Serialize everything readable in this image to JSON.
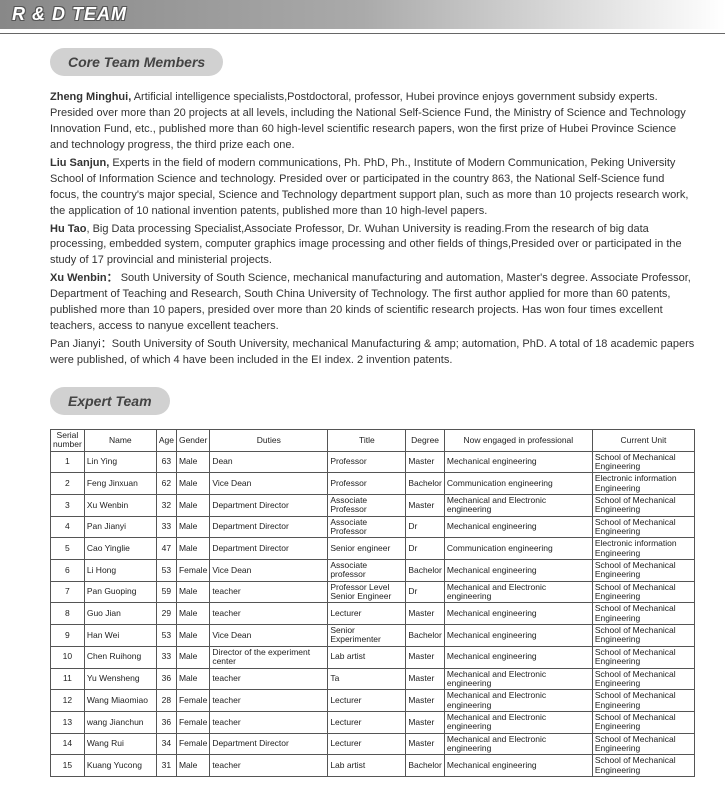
{
  "banner": {
    "title": "R & D TEAM"
  },
  "sections": {
    "core": "Core Team Members",
    "expert": "Expert Team"
  },
  "bios": {
    "p1_name": "Zheng Minghui,",
    "p1_rest": "  Artificial intelligence specialists,Postdoctoral, professor, Hubei province enjoys government subsidy experts. Presided over more than 20 projects at all levels, including the National Self-Science Fund, the Ministry of Science and Technology Innovation Fund, etc., published more than 60 high-level scientific research papers, won the first prize of Hubei Province Science and technology progress, the third prize each one.",
    "p2_name": "Liu Sanjun,",
    "p2_rest": " Experts in the field of modern communications, Ph. PhD, Ph., Institute of Modern Communication, Peking University School of Information Science and technology. Presided over or participated in the country 863, the National Self-Science fund focus, the country's major special, Science and Technology department support plan, such as more than 10 projects research work, the application of 10 national invention patents, published more than 10 high-level papers.",
    "p3_name": "Hu Tao",
    "p3_rest": ", Big Data processing Specialist,Associate Professor, Dr. Wuhan University is reading.From the research of big data processing, embedded system, computer graphics image processing and other fields of things,Presided over or participated in the study of 17 provincial and ministerial projects.",
    "p4_name": "Xu Wenbin：",
    "p4_rest": "   South University of South Science, mechanical manufacturing and automation, Master's degree. Associate Professor, Department of Teaching and Research, South China University of Technology. The first author applied for more than 60 patents, published more than 10 papers, presided over more than 20 kinds of scientific research projects. Has won four times excellent teachers, access to nanyue excellent teachers.",
    "p5": "Pan Jianyi：South University of South University, mechanical Manufacturing & amp; automation, PhD. A total of 18 academic papers were published, of which 4 have been included in the EI index. 2 invention patents."
  },
  "table": {
    "headers": {
      "sn": "Serial number",
      "name": "Name",
      "age": "Age",
      "gender": "Gender",
      "duties": "Duties",
      "title": "Title",
      "degree": "Degree",
      "prof": "Now engaged in professional",
      "unit": "Current Unit"
    },
    "rows": [
      {
        "sn": "1",
        "name": "Lin Ying",
        "age": "63",
        "gender": "Male",
        "duties": "Dean",
        "title": "Professor",
        "degree": "Master",
        "prof": "Mechanical engineering",
        "unit": "School of Mechanical Engineering"
      },
      {
        "sn": "2",
        "name": "Feng Jinxuan",
        "age": "62",
        "gender": "Male",
        "duties": "Vice Dean",
        "title": "Professor",
        "degree": "Bachelor",
        "prof": "Communication engineering",
        "unit": "Electronic information Engineering"
      },
      {
        "sn": "3",
        "name": "Xu Wenbin",
        "age": "32",
        "gender": "Male",
        "duties": "Department Director",
        "title": "Associate Professor",
        "degree": "Master",
        "prof": "Mechanical and Electronic engineering",
        "unit": "School of Mechanical Engineering"
      },
      {
        "sn": "4",
        "name": "Pan Jianyi",
        "age": "33",
        "gender": "Male",
        "duties": "Department Director",
        "title": "Associate Professor",
        "degree": "Dr",
        "prof": "Mechanical engineering",
        "unit": "School of Mechanical Engineering"
      },
      {
        "sn": "5",
        "name": "Cao Yinglie",
        "age": "47",
        "gender": "Male",
        "duties": "Department Director",
        "title": "Senior engineer",
        "degree": "Dr",
        "prof": "Communication engineering",
        "unit": "Electronic information Engineering"
      },
      {
        "sn": "6",
        "name": "Li Hong",
        "age": "53",
        "gender": "Female",
        "duties": "Vice Dean",
        "title": "Associate professor",
        "degree": "Bachelor",
        "prof": "Mechanical engineering",
        "unit": "School of Mechanical Engineering"
      },
      {
        "sn": "7",
        "name": "Pan Guoping",
        "age": "59",
        "gender": "Male",
        "duties": "teacher",
        "title": "Professor Level Senior Engineer",
        "degree": "Dr",
        "prof": "Mechanical and Electronic engineering",
        "unit": "School of Mechanical Engineering"
      },
      {
        "sn": "8",
        "name": "Guo Jian",
        "age": "29",
        "gender": "Male",
        "duties": "teacher",
        "title": "Lecturer",
        "degree": "Master",
        "prof": "Mechanical engineering",
        "unit": "School of Mechanical Engineering"
      },
      {
        "sn": "9",
        "name": "Han Wei",
        "age": "53",
        "gender": "Male",
        "duties": "Vice Dean",
        "title": "Senior Experimenter",
        "degree": "Bachelor",
        "prof": "Mechanical engineering",
        "unit": "School of Mechanical Engineering"
      },
      {
        "sn": "10",
        "name": "Chen Ruihong",
        "age": "33",
        "gender": "Male",
        "duties": "Director of the experiment center",
        "title": "Lab artist",
        "degree": "Master",
        "prof": "Mechanical engineering",
        "unit": "School of Mechanical Engineering"
      },
      {
        "sn": "11",
        "name": "Yu Wensheng",
        "age": "36",
        "gender": "Male",
        "duties": "teacher",
        "title": "Ta",
        "degree": "Master",
        "prof": "Mechanical and Electronic engineering",
        "unit": "School of Mechanical Engineering"
      },
      {
        "sn": "12",
        "name": "Wang Miaomiao",
        "age": "28",
        "gender": "Female",
        "duties": "teacher",
        "title": "Lecturer",
        "degree": "Master",
        "prof": "Mechanical and Electronic engineering",
        "unit": "School of Mechanical Engineering"
      },
      {
        "sn": "13",
        "name": "wang Jianchun",
        "age": "36",
        "gender": "Female",
        "duties": "teacher",
        "title": "Lecturer",
        "degree": "Master",
        "prof": "Mechanical and Electronic engineering",
        "unit": "School of Mechanical Engineering"
      },
      {
        "sn": "14",
        "name": "Wang Rui",
        "age": "34",
        "gender": "Female",
        "duties": "Department Director",
        "title": "Lecturer",
        "degree": "Master",
        "prof": "Mechanical and Electronic engineering",
        "unit": "School of Mechanical Engineering"
      },
      {
        "sn": "15",
        "name": "Kuang Yucong",
        "age": "31",
        "gender": "Male",
        "duties": "teacher",
        "title": "Lab artist",
        "degree": "Bachelor",
        "prof": "Mechanical engineering",
        "unit": "School of Mechanical Engineering"
      }
    ]
  }
}
